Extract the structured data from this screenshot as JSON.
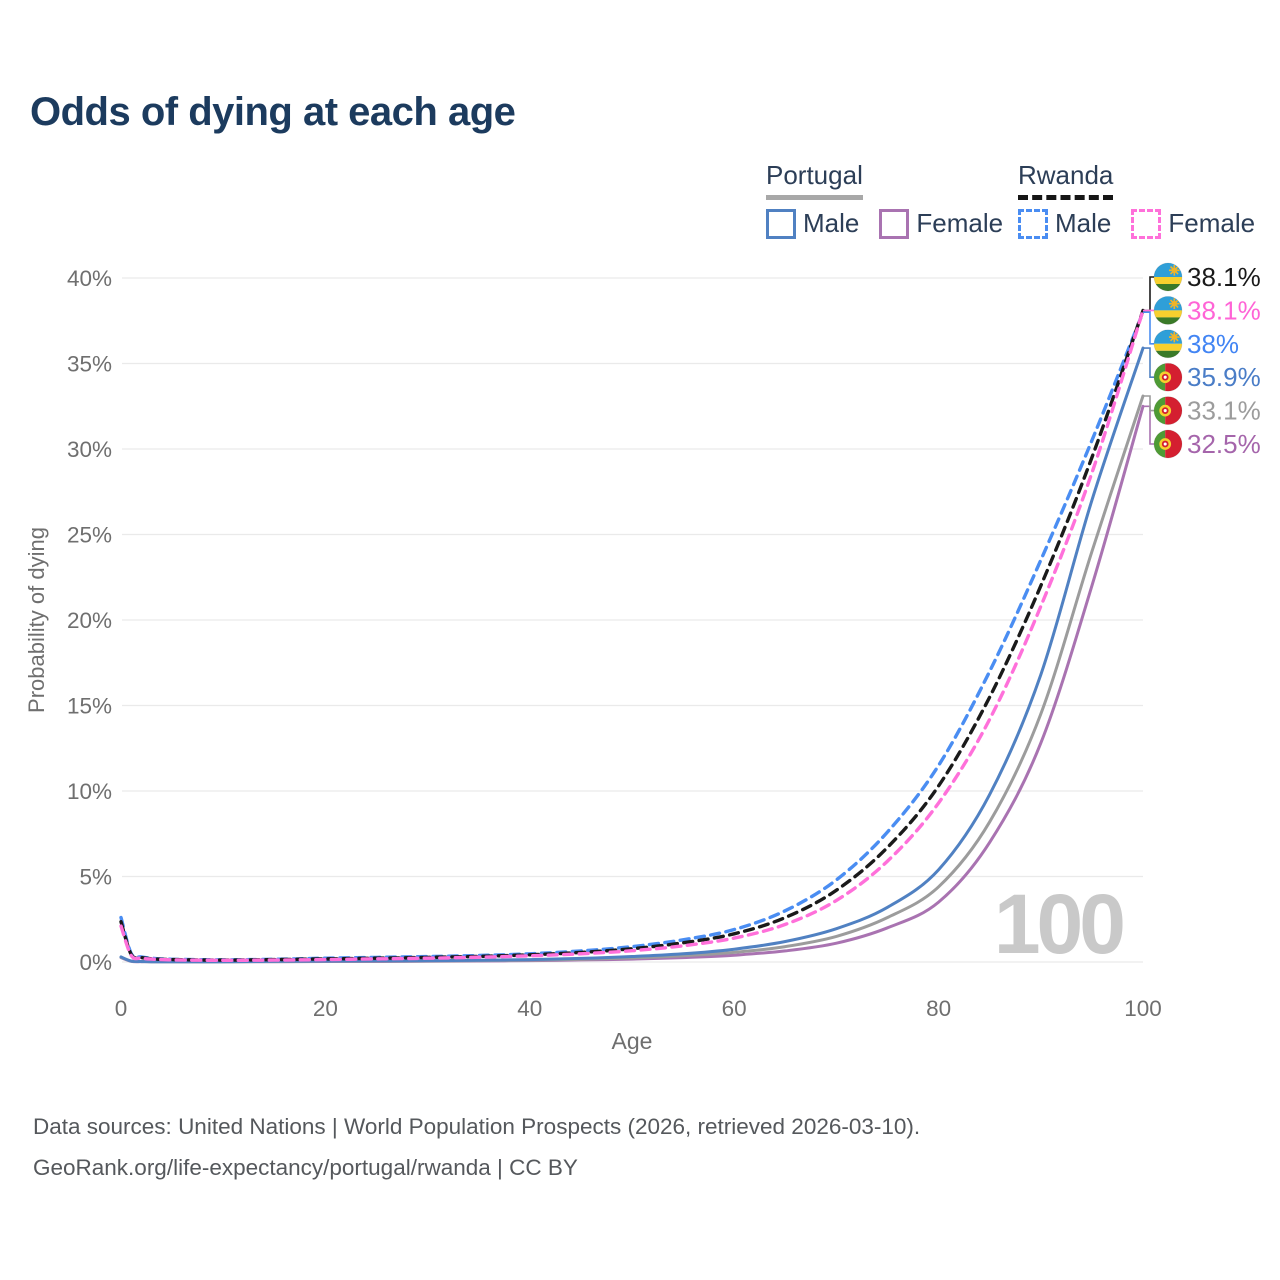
{
  "title": "Odds of dying at each age",
  "legend": {
    "portugal": {
      "label": "Portugal",
      "male": "Male",
      "female": "Female"
    },
    "rwanda": {
      "label": "Rwanda",
      "male": "Male",
      "female": "Female"
    }
  },
  "footer": {
    "line1": "Data sources: United Nations | World Population Prospects (2026, retrieved 2026-03-10).",
    "line2": "GeoRank.org/life-expectancy/portugal/rwanda | CC BY"
  },
  "colors": {
    "title": "#1c3b5e",
    "legend_text": "#2c3e57",
    "axis_text": "#6f6f6f",
    "grid": "#eaeaea",
    "watermark": "#c9c9c9",
    "footer_text": "#55585c",
    "portugal_underline": "#a8a8a8",
    "rwanda_underline": "#161616"
  },
  "chart_data": {
    "type": "line",
    "title": "Odds of dying at each age",
    "xlabel": "Age",
    "ylabel": "Probability of dying",
    "xlim": [
      0,
      100
    ],
    "ylim": [
      0,
      40
    ],
    "x_ticks": [
      0,
      20,
      40,
      60,
      80,
      100
    ],
    "y_ticks": [
      0,
      5,
      10,
      15,
      20,
      25,
      30,
      35,
      40
    ],
    "y_tick_suffix": "%",
    "grid": "horizontal",
    "legend_position": "top-right",
    "watermark": "100",
    "anchor_ages": [
      0,
      1,
      2,
      3,
      5,
      10,
      15,
      20,
      25,
      30,
      35,
      40,
      45,
      50,
      55,
      60,
      65,
      70,
      75,
      80,
      85,
      90,
      95,
      100
    ],
    "series": [
      {
        "name": "Portugal Female",
        "country": "Portugal",
        "sex": "Female",
        "legend_key": "portugal-female",
        "style": "solid",
        "color": "#a973b1",
        "label_color": "#a565ab",
        "flag": "portugal",
        "end_label": "32.5%",
        "end_value": 32.5,
        "label_slot": 5,
        "values": [
          0.26,
          0.04,
          0.02,
          0.02,
          0.01,
          0.01,
          0.02,
          0.03,
          0.03,
          0.04,
          0.06,
          0.08,
          0.12,
          0.17,
          0.26,
          0.4,
          0.65,
          1.1,
          2.0,
          3.5,
          7.0,
          12.8,
          22.0,
          32.5
        ]
      },
      {
        "name": "Portugal Both sexes",
        "country": "Portugal",
        "sex": "Both",
        "legend_key": "portugal-both",
        "style": "solid",
        "color": "#9c9c9c",
        "label_color": "#9c9c9c",
        "flag": "portugal",
        "end_label": "33.1%",
        "end_value": 33.1,
        "label_slot": 4,
        "values": [
          0.28,
          0.05,
          0.03,
          0.02,
          0.02,
          0.02,
          0.03,
          0.04,
          0.05,
          0.06,
          0.08,
          0.11,
          0.16,
          0.24,
          0.37,
          0.56,
          0.9,
          1.5,
          2.6,
          4.4,
          8.2,
          14.5,
          24.0,
          33.1
        ]
      },
      {
        "name": "Portugal Male",
        "country": "Portugal",
        "sex": "Male",
        "legend_key": "portugal-male",
        "style": "solid",
        "color": "#5081c2",
        "label_color": "#4a7dc7",
        "flag": "portugal",
        "end_label": "35.9%",
        "end_value": 35.9,
        "label_slot": 3,
        "values": [
          0.3,
          0.05,
          0.03,
          0.02,
          0.02,
          0.02,
          0.04,
          0.06,
          0.07,
          0.08,
          0.1,
          0.14,
          0.21,
          0.32,
          0.48,
          0.75,
          1.2,
          1.95,
          3.2,
          5.4,
          9.8,
          16.8,
          27.0,
          35.9
        ]
      },
      {
        "name": "Rwanda Male",
        "country": "Rwanda",
        "sex": "Male",
        "legend_key": "rwanda-male",
        "style": "dashed",
        "color": "#4a8df2",
        "label_color": "#4285f4",
        "flag": "rwanda",
        "end_label": "38%",
        "end_value": 38.0,
        "label_slot": 2,
        "values": [
          2.6,
          0.5,
          0.3,
          0.22,
          0.16,
          0.13,
          0.16,
          0.22,
          0.27,
          0.32,
          0.38,
          0.48,
          0.65,
          0.9,
          1.3,
          1.9,
          3.0,
          4.8,
          7.6,
          11.5,
          17.0,
          23.5,
          30.5,
          38.0
        ]
      },
      {
        "name": "Rwanda Both sexes",
        "country": "Rwanda",
        "sex": "Both",
        "legend_key": "rwanda-both",
        "style": "dashed",
        "color": "#1a1a1a",
        "label_color": "#1a1a1a",
        "flag": "rwanda",
        "end_label": "38.1%",
        "end_value": 38.1,
        "label_slot": 0,
        "values": [
          2.35,
          0.44,
          0.26,
          0.19,
          0.14,
          0.11,
          0.14,
          0.18,
          0.22,
          0.27,
          0.33,
          0.42,
          0.56,
          0.78,
          1.12,
          1.65,
          2.6,
          4.2,
          6.7,
          10.3,
          15.5,
          22.0,
          29.5,
          38.1
        ]
      },
      {
        "name": "Rwanda Female",
        "country": "Rwanda",
        "sex": "Female",
        "legend_key": "rwanda-female",
        "style": "dashed",
        "color": "#ff70da",
        "label_color": "#ff64d6",
        "flag": "rwanda",
        "end_label": "38.1%",
        "end_value": 38.1,
        "label_slot": 1,
        "values": [
          2.1,
          0.38,
          0.23,
          0.17,
          0.12,
          0.1,
          0.11,
          0.14,
          0.18,
          0.22,
          0.28,
          0.36,
          0.48,
          0.66,
          0.95,
          1.4,
          2.2,
          3.6,
          5.9,
          9.3,
          14.2,
          20.8,
          28.6,
          38.1
        ]
      }
    ]
  }
}
